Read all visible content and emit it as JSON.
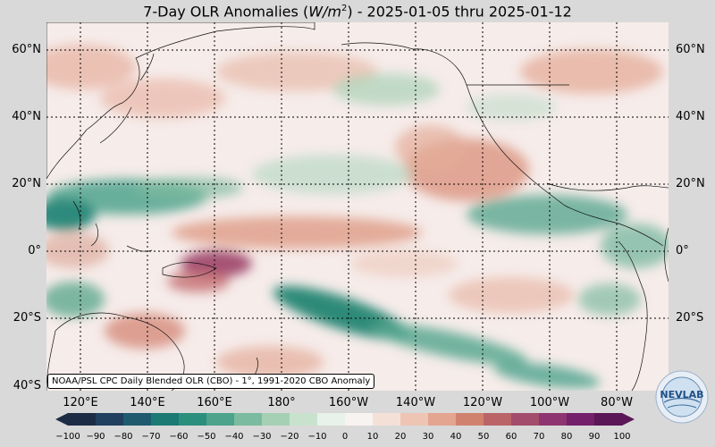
{
  "title_main": "7-Day OLR Anomalies (",
  "title_unit_w": "W/m",
  "title_unit_exp": "2",
  "title_close": ")",
  "title_dates": " - 2025-01-05 thru 2025-01-12",
  "lat_labels": [
    "60°N",
    "40°N",
    "20°N",
    "0°",
    "20°S",
    "40°S"
  ],
  "lon_labels": [
    "120°E",
    "140°E",
    "160°E",
    "180°",
    "160°W",
    "140°W",
    "120°W",
    "100°W",
    "80°W"
  ],
  "credit": "NOAA/PSL CPC Daily Blended OLR (CBO) - 1°, 1991-2020 CBO Anomaly",
  "colorbar": {
    "ticks": [
      "−100",
      "−90",
      "−80",
      "−70",
      "−60",
      "−50",
      "−40",
      "−30",
      "−20",
      "−10",
      "0",
      "10",
      "20",
      "30",
      "40",
      "50",
      "60",
      "70",
      "80",
      "90",
      "100"
    ],
    "colors": [
      "#1c2c44",
      "#213f5e",
      "#1f5a6e",
      "#1b7a73",
      "#2a8f7d",
      "#4da38c",
      "#7bbb9f",
      "#a5d0b4",
      "#c9e2ce",
      "#e9f2ea",
      "#f7f3f1",
      "#f5e0d8",
      "#eec5b5",
      "#e3a490",
      "#d1826f",
      "#bb6468",
      "#a34c6c",
      "#8e3470",
      "#74206a",
      "#5a1656"
    ]
  },
  "logo_text": "NEVLAB",
  "colors": {
    "background": "#d9d9d9",
    "ocean_neutral": "#f6ecea"
  }
}
